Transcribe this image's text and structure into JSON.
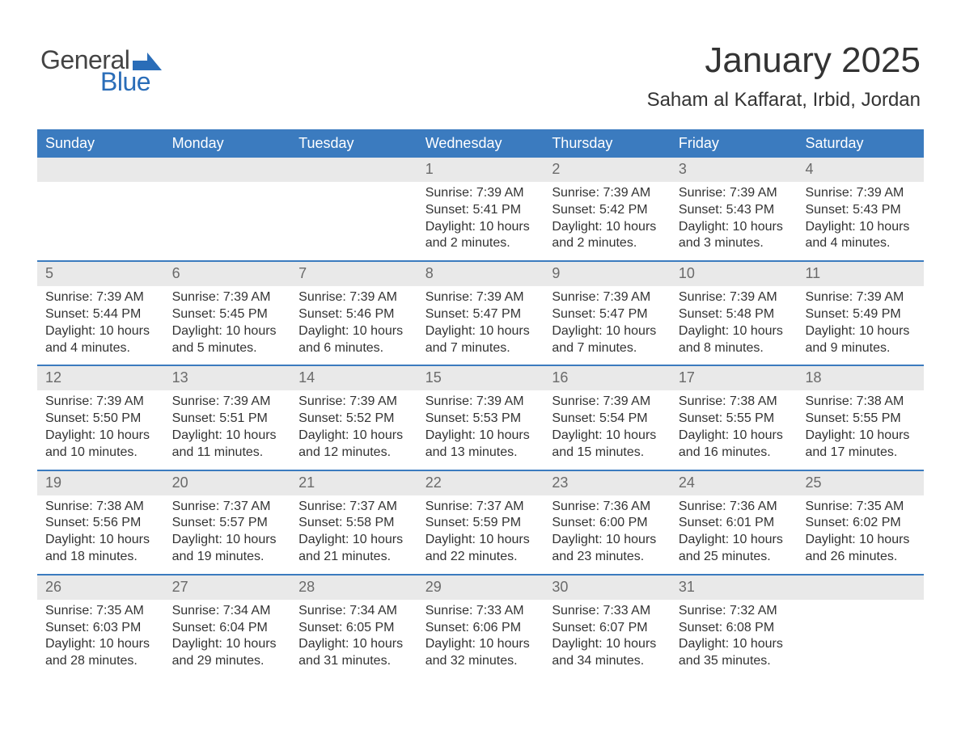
{
  "logo": {
    "general": "General",
    "blue": "Blue",
    "shape_color": "#2a6db8"
  },
  "header": {
    "title": "January 2025",
    "subtitle": "Saham al Kaffarat, Irbid, Jordan"
  },
  "colors": {
    "header_bg": "#3b7bbf",
    "daynum_bg": "#e9e9e9",
    "daynum_text": "#6a6a6a",
    "week_border": "#3b7bbf",
    "text": "#333333",
    "background": "#ffffff"
  },
  "fonts": {
    "family": "Arial, Helvetica, sans-serif",
    "title_size_pt": 33,
    "subtitle_size_pt": 18,
    "dayheader_size_pt": 14,
    "daynum_size_pt": 14,
    "body_size_pt": 12
  },
  "day_names": [
    "Sunday",
    "Monday",
    "Tuesday",
    "Wednesday",
    "Thursday",
    "Friday",
    "Saturday"
  ],
  "weeks": [
    [
      {
        "num": "",
        "sunrise": "",
        "sunset": "",
        "daylight": ""
      },
      {
        "num": "",
        "sunrise": "",
        "sunset": "",
        "daylight": ""
      },
      {
        "num": "",
        "sunrise": "",
        "sunset": "",
        "daylight": ""
      },
      {
        "num": "1",
        "sunrise": "Sunrise: 7:39 AM",
        "sunset": "Sunset: 5:41 PM",
        "daylight": "Daylight: 10 hours and 2 minutes."
      },
      {
        "num": "2",
        "sunrise": "Sunrise: 7:39 AM",
        "sunset": "Sunset: 5:42 PM",
        "daylight": "Daylight: 10 hours and 2 minutes."
      },
      {
        "num": "3",
        "sunrise": "Sunrise: 7:39 AM",
        "sunset": "Sunset: 5:43 PM",
        "daylight": "Daylight: 10 hours and 3 minutes."
      },
      {
        "num": "4",
        "sunrise": "Sunrise: 7:39 AM",
        "sunset": "Sunset: 5:43 PM",
        "daylight": "Daylight: 10 hours and 4 minutes."
      }
    ],
    [
      {
        "num": "5",
        "sunrise": "Sunrise: 7:39 AM",
        "sunset": "Sunset: 5:44 PM",
        "daylight": "Daylight: 10 hours and 4 minutes."
      },
      {
        "num": "6",
        "sunrise": "Sunrise: 7:39 AM",
        "sunset": "Sunset: 5:45 PM",
        "daylight": "Daylight: 10 hours and 5 minutes."
      },
      {
        "num": "7",
        "sunrise": "Sunrise: 7:39 AM",
        "sunset": "Sunset: 5:46 PM",
        "daylight": "Daylight: 10 hours and 6 minutes."
      },
      {
        "num": "8",
        "sunrise": "Sunrise: 7:39 AM",
        "sunset": "Sunset: 5:47 PM",
        "daylight": "Daylight: 10 hours and 7 minutes."
      },
      {
        "num": "9",
        "sunrise": "Sunrise: 7:39 AM",
        "sunset": "Sunset: 5:47 PM",
        "daylight": "Daylight: 10 hours and 7 minutes."
      },
      {
        "num": "10",
        "sunrise": "Sunrise: 7:39 AM",
        "sunset": "Sunset: 5:48 PM",
        "daylight": "Daylight: 10 hours and 8 minutes."
      },
      {
        "num": "11",
        "sunrise": "Sunrise: 7:39 AM",
        "sunset": "Sunset: 5:49 PM",
        "daylight": "Daylight: 10 hours and 9 minutes."
      }
    ],
    [
      {
        "num": "12",
        "sunrise": "Sunrise: 7:39 AM",
        "sunset": "Sunset: 5:50 PM",
        "daylight": "Daylight: 10 hours and 10 minutes."
      },
      {
        "num": "13",
        "sunrise": "Sunrise: 7:39 AM",
        "sunset": "Sunset: 5:51 PM",
        "daylight": "Daylight: 10 hours and 11 minutes."
      },
      {
        "num": "14",
        "sunrise": "Sunrise: 7:39 AM",
        "sunset": "Sunset: 5:52 PM",
        "daylight": "Daylight: 10 hours and 12 minutes."
      },
      {
        "num": "15",
        "sunrise": "Sunrise: 7:39 AM",
        "sunset": "Sunset: 5:53 PM",
        "daylight": "Daylight: 10 hours and 13 minutes."
      },
      {
        "num": "16",
        "sunrise": "Sunrise: 7:39 AM",
        "sunset": "Sunset: 5:54 PM",
        "daylight": "Daylight: 10 hours and 15 minutes."
      },
      {
        "num": "17",
        "sunrise": "Sunrise: 7:38 AM",
        "sunset": "Sunset: 5:55 PM",
        "daylight": "Daylight: 10 hours and 16 minutes."
      },
      {
        "num": "18",
        "sunrise": "Sunrise: 7:38 AM",
        "sunset": "Sunset: 5:55 PM",
        "daylight": "Daylight: 10 hours and 17 minutes."
      }
    ],
    [
      {
        "num": "19",
        "sunrise": "Sunrise: 7:38 AM",
        "sunset": "Sunset: 5:56 PM",
        "daylight": "Daylight: 10 hours and 18 minutes."
      },
      {
        "num": "20",
        "sunrise": "Sunrise: 7:37 AM",
        "sunset": "Sunset: 5:57 PM",
        "daylight": "Daylight: 10 hours and 19 minutes."
      },
      {
        "num": "21",
        "sunrise": "Sunrise: 7:37 AM",
        "sunset": "Sunset: 5:58 PM",
        "daylight": "Daylight: 10 hours and 21 minutes."
      },
      {
        "num": "22",
        "sunrise": "Sunrise: 7:37 AM",
        "sunset": "Sunset: 5:59 PM",
        "daylight": "Daylight: 10 hours and 22 minutes."
      },
      {
        "num": "23",
        "sunrise": "Sunrise: 7:36 AM",
        "sunset": "Sunset: 6:00 PM",
        "daylight": "Daylight: 10 hours and 23 minutes."
      },
      {
        "num": "24",
        "sunrise": "Sunrise: 7:36 AM",
        "sunset": "Sunset: 6:01 PM",
        "daylight": "Daylight: 10 hours and 25 minutes."
      },
      {
        "num": "25",
        "sunrise": "Sunrise: 7:35 AM",
        "sunset": "Sunset: 6:02 PM",
        "daylight": "Daylight: 10 hours and 26 minutes."
      }
    ],
    [
      {
        "num": "26",
        "sunrise": "Sunrise: 7:35 AM",
        "sunset": "Sunset: 6:03 PM",
        "daylight": "Daylight: 10 hours and 28 minutes."
      },
      {
        "num": "27",
        "sunrise": "Sunrise: 7:34 AM",
        "sunset": "Sunset: 6:04 PM",
        "daylight": "Daylight: 10 hours and 29 minutes."
      },
      {
        "num": "28",
        "sunrise": "Sunrise: 7:34 AM",
        "sunset": "Sunset: 6:05 PM",
        "daylight": "Daylight: 10 hours and 31 minutes."
      },
      {
        "num": "29",
        "sunrise": "Sunrise: 7:33 AM",
        "sunset": "Sunset: 6:06 PM",
        "daylight": "Daylight: 10 hours and 32 minutes."
      },
      {
        "num": "30",
        "sunrise": "Sunrise: 7:33 AM",
        "sunset": "Sunset: 6:07 PM",
        "daylight": "Daylight: 10 hours and 34 minutes."
      },
      {
        "num": "31",
        "sunrise": "Sunrise: 7:32 AM",
        "sunset": "Sunset: 6:08 PM",
        "daylight": "Daylight: 10 hours and 35 minutes."
      },
      {
        "num": "",
        "sunrise": "",
        "sunset": "",
        "daylight": ""
      }
    ]
  ]
}
